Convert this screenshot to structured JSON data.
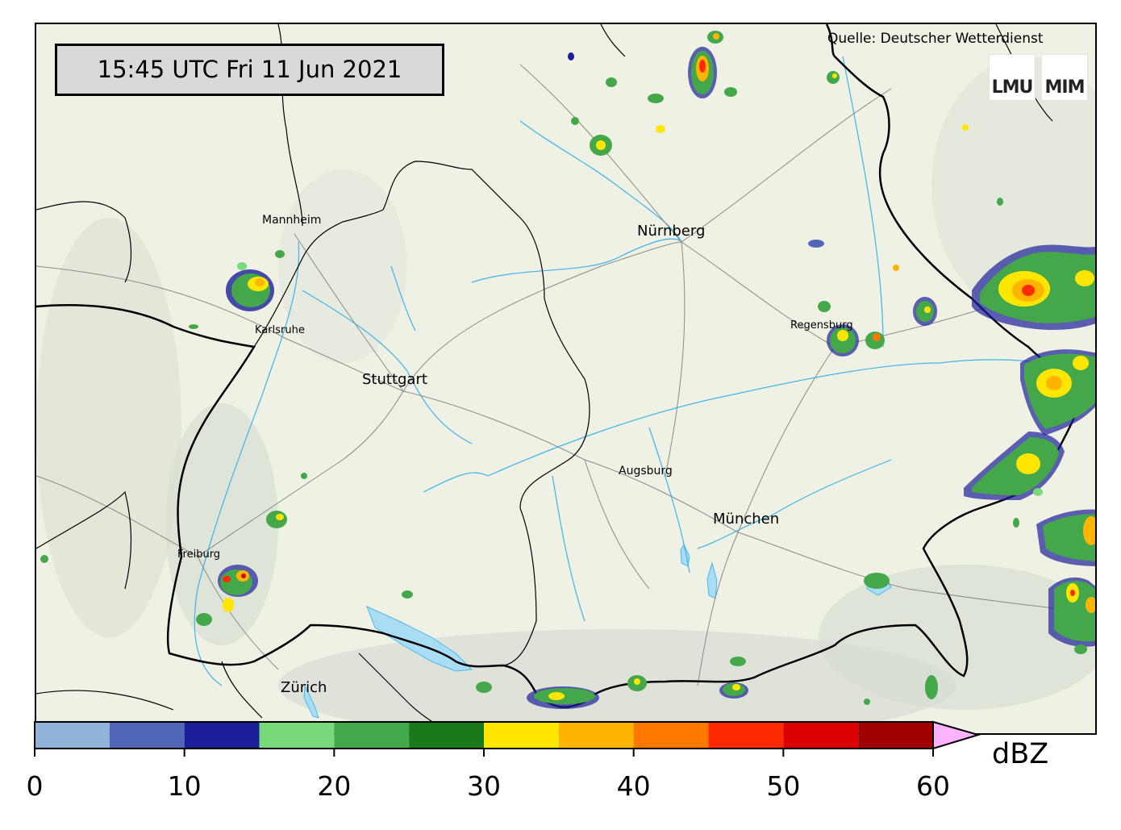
{
  "timestamp": "15:45 UTC  Fri 11 Jun 2021",
  "source": "Quelle: Deutscher Wetterdienst",
  "logos": {
    "lmu": "LMU",
    "mim": "MIM"
  },
  "cities": {
    "mannheim": "Mannheim",
    "nuernberg": "Nürnberg",
    "karlsruhe": "Karlsruhe",
    "regensburg": "Regensburg",
    "stuttgart": "Stuttgart",
    "augsburg": "Augsburg",
    "muenchen": "München",
    "freiburg": "Freiburg",
    "zuerich": "Zürich"
  },
  "colorbar": {
    "unit": "dBZ",
    "ticks": [
      "0",
      "10",
      "20",
      "30",
      "40",
      "50",
      "60"
    ],
    "bins": [
      {
        "from": 0,
        "to": 5,
        "color": "#8fb3d9"
      },
      {
        "from": 5,
        "to": 10,
        "color": "#5266b8"
      },
      {
        "from": 10,
        "to": 15,
        "color": "#1c1f9a"
      },
      {
        "from": 15,
        "to": 20,
        "color": "#78d97a"
      },
      {
        "from": 20,
        "to": 25,
        "color": "#44a84a"
      },
      {
        "from": 25,
        "to": 30,
        "color": "#1a7a1a"
      },
      {
        "from": 30,
        "to": 35,
        "color": "#ffe600"
      },
      {
        "from": 35,
        "to": 40,
        "color": "#ffb400"
      },
      {
        "from": 40,
        "to": 45,
        "color": "#ff7800"
      },
      {
        "from": 45,
        "to": 50,
        "color": "#ff2a00"
      },
      {
        "from": 50,
        "to": 55,
        "color": "#dc0000"
      },
      {
        "from": 55,
        "to": 60,
        "color": "#a00000"
      }
    ],
    "extend_color": "#ffb3ff"
  }
}
